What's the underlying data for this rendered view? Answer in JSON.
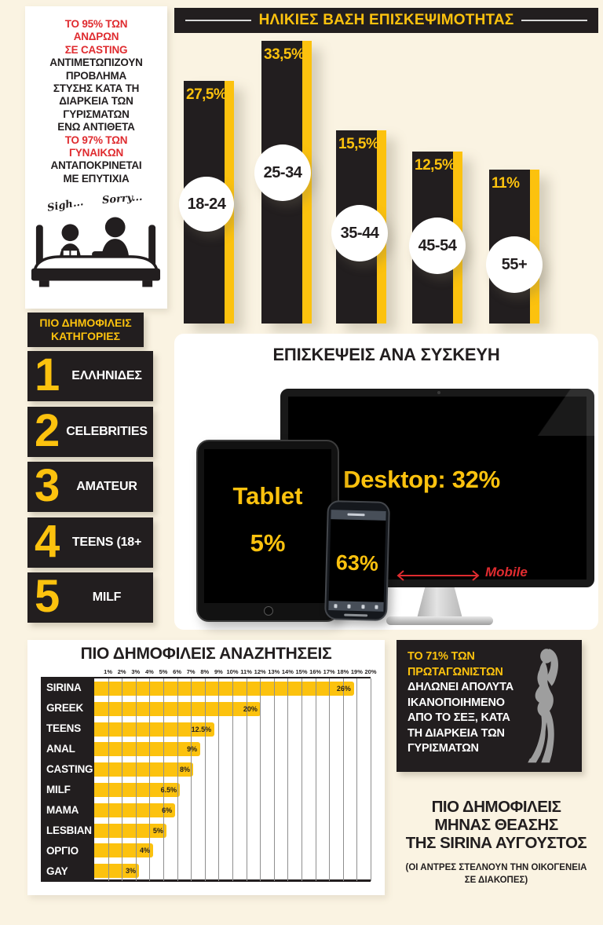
{
  "colors": {
    "background": "#FAF3E2",
    "black": "#221E1F",
    "yellow": "#FCC20E",
    "red": "#DF2B2F",
    "white": "#FFFFFF",
    "silhouette_gray": "#9E9E9E"
  },
  "icons": {
    "bed-couple-illustration": "two figures sitting in bed, black pictogram",
    "woman-silhouette": "gray standing female silhouette",
    "desktop-device": "monitor with stand",
    "tablet-device": "tablet with home button",
    "phone-device": "smartphone with notch",
    "mobile-arrow": "red double-headed arrow"
  },
  "intro": {
    "red1": "ΤΟ 95% ΤΩΝ\nΑΝΔΡΩΝ\nΣΕ CASTING",
    "black1": "ΑΝΤΙΜΕΤΩΠΙΖΟΥΝ\nΠΡΟΒΛΗΜΑ\nΣΤΥΣΗΣ ΚΑΤΑ ΤΗ\nΔΙΑΡΚΕΙΑ ΤΩΝ\nΓΥΡΙΣΜΑΤΩΝ\nΕΝΩ ΑΝΤΙΘΕΤΑ",
    "red2": "ΤΟ 97% ΤΩΝ\nΓΥΝΑΙΚΩΝ",
    "black2": "ΑΝΤΑΠΟΚΡΙΝΕΤΑΙ\nΜΕ ΕΠΥΤΙΧΙΑ",
    "sigh": "Sigh...",
    "sorry": "Sorry..."
  },
  "chart_data": [
    {
      "type": "bar",
      "title": "ΗΛΙΚΙΕΣ ΒΑΣΗ ΕΠΙΣΚΕΨΙΜΟΤΗΤΑΣ",
      "categories": [
        "18-24",
        "25-34",
        "35-44",
        "45-54",
        "55+"
      ],
      "values": [
        27.5,
        33.5,
        15.5,
        12.5,
        11
      ],
      "value_labels": [
        "27,5%",
        "33,5%",
        "15,5%",
        "12,5%",
        "11%"
      ],
      "ylabel": "",
      "xlabel": "",
      "legend": "none",
      "grid": false
    },
    {
      "type": "pictogram",
      "title": "ΕΠΙΣΚΕΨΕΙΣ ΑΝΑ ΣΥΣΚΕΥΗ",
      "items": [
        {
          "device": "Desktop",
          "value": 32,
          "label": "Desktop: 32%"
        },
        {
          "device": "Tablet",
          "value": 5,
          "label": "Tablet",
          "value_label": "5%"
        },
        {
          "device": "Mobile",
          "value": 63,
          "value_label": "63%",
          "label": "Mobile"
        }
      ]
    },
    {
      "type": "bar",
      "orientation": "horizontal",
      "title": "ΠΙΟ ΔΗΜΟΦΙΛΕΙΣ ΑΝΑΖΗΤΗΣΕΙΣ",
      "xlim": [
        0,
        20
      ],
      "ticks": [
        "1%",
        "2%",
        "3%",
        "4%",
        "5%",
        "6%",
        "7%",
        "8%",
        "9%",
        "10%",
        "11%",
        "12%",
        "13%",
        "14%",
        "15%",
        "16%",
        "17%",
        "18%",
        "19%",
        "20%"
      ],
      "rows": [
        {
          "label": "SIRINA",
          "value": 26,
          "value_label": "26%",
          "bar_axis_extent_pct": 18.8
        },
        {
          "label": "GREEK",
          "value": 20,
          "value_label": "20%",
          "bar_axis_extent_pct": 12.1
        },
        {
          "label": "TEENS",
          "value": 12.5,
          "value_label": "12.5%",
          "bar_axis_extent_pct": 8.7
        },
        {
          "label": "ANAL",
          "value": 9,
          "value_label": "9%",
          "bar_axis_extent_pct": 7.7
        },
        {
          "label": "CASTING",
          "value": 8,
          "value_label": "8%",
          "bar_axis_extent_pct": 7.2
        },
        {
          "label": "MILF",
          "value": 6.5,
          "value_label": "6.5%",
          "bar_axis_extent_pct": 6.2
        },
        {
          "label": "MAMA",
          "value": 6,
          "value_label": "6%",
          "bar_axis_extent_pct": 5.9
        },
        {
          "label": "LESBIAN",
          "value": 5,
          "value_label": "5%",
          "bar_axis_extent_pct": 5.2
        },
        {
          "label": "ΟΡΓΙΟ",
          "value": 4,
          "value_label": "4%",
          "bar_axis_extent_pct": 4.3
        },
        {
          "label": "GAY",
          "value": 3,
          "value_label": "3%",
          "bar_axis_extent_pct": 3.2
        }
      ]
    }
  ],
  "categories_panel": {
    "title": "ΠΙΟ ΔΗΜΟΦΙΛΕΙΣ\nΚΑΤΗΓΟΡΙΕΣ",
    "items": [
      {
        "rank": "1",
        "label": "ΕΛΛΗΝΙΔΕΣ"
      },
      {
        "rank": "2",
        "label": "CELEBRITIES"
      },
      {
        "rank": "3",
        "label": "AMATEUR"
      },
      {
        "rank": "4",
        "label": "TEENS (18+"
      },
      {
        "rank": "5",
        "label": "MILF"
      }
    ]
  },
  "protagonists_box": {
    "highlight": "ΤΟ 71% ΤΩΝ\nΠΡΩΤΑΓΩΝΙΣΤΩΝ",
    "body": "ΔΗΛΩΝΕΙ ΑΠΟΛΥΤΑ\nΙΚΑΝΟΠΟΙΗΜΕΝΟ\nΑΠΟ ΤΟ ΣΕΞ, ΚΑΤΑ\nΤΗ ΔΙΑΡΚΕΙΑ ΤΩΝ\nΓΥΡΙΣΜΑΤΩΝ"
  },
  "august_note": {
    "title": "ΠΙΟ ΔΗΜΟΦΙΛΕΙΣ\nΜΗΝΑΣ ΘΕΑΣΗΣ\nΤΗΣ SIRINA ΑΥΓΟΥΣΤΟΣ",
    "subtitle": "(ΟΙ ΑΝΤΡΕΣ ΣΤΕΛΝΟΥΝ ΤΗΝ ΟΙΚΟΓΕΝΕΙΑ\nΣΕ  ΔΙΑΚΟΠΕΣ)"
  }
}
